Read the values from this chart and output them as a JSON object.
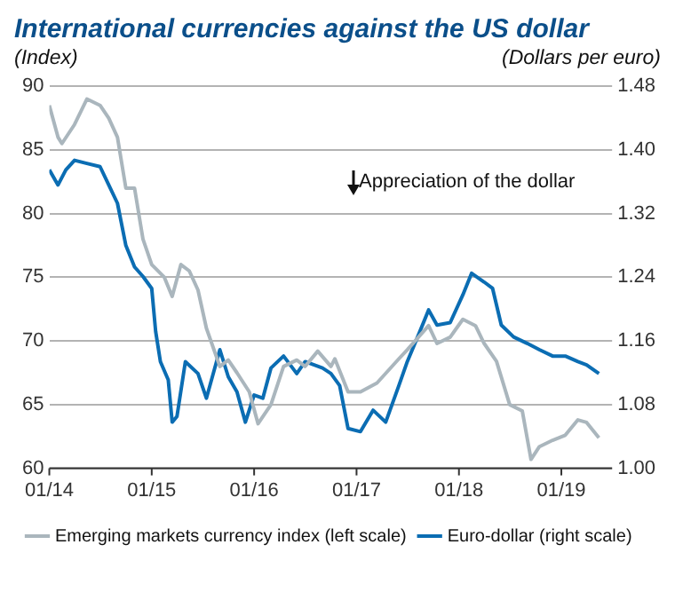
{
  "chart_data": {
    "type": "line",
    "title": "International currencies against the US dollar",
    "ylabel": "(Index)",
    "y2label": "(Dollars per euro)",
    "annotations": [
      "Appreciation of the dollar"
    ],
    "xlim": [
      "2014-01-01",
      "2019-07-01"
    ],
    "xticks": [
      {
        "value": "2014-01-01",
        "label": "01/14"
      },
      {
        "value": "2015-01-01",
        "label": "01/15"
      },
      {
        "value": "2016-01-01",
        "label": "01/16"
      },
      {
        "value": "2017-01-01",
        "label": "01/17"
      },
      {
        "value": "2018-01-01",
        "label": "01/18"
      },
      {
        "value": "2019-01-01",
        "label": "01/19"
      }
    ],
    "ylim": [
      60,
      90
    ],
    "yticks": [
      60,
      65,
      70,
      75,
      80,
      85,
      90
    ],
    "y2lim": [
      1.0,
      1.48
    ],
    "y2ticks": [
      {
        "value": 1.0,
        "label": "1.00"
      },
      {
        "value": 1.08,
        "label": "1.08"
      },
      {
        "value": 1.16,
        "label": "1.16"
      },
      {
        "value": 1.24,
        "label": "1.24"
      },
      {
        "value": 1.32,
        "label": "1.32"
      },
      {
        "value": 1.4,
        "label": "1.40"
      },
      {
        "value": 1.48,
        "label": "1.48"
      }
    ],
    "grid": "y",
    "legend": "bottom",
    "marker": "none",
    "line_style": "solid",
    "series": [
      {
        "name": "Emerging markets currency index (left scale)",
        "color": "#aab6bd",
        "x": [
          "2014-01-01",
          "2014-02-01",
          "2014-02-15",
          "2014-04-01",
          "2014-05-15",
          "2014-07-01",
          "2014-08-01",
          "2014-09-01",
          "2014-10-01",
          "2014-11-01",
          "2014-12-01",
          "2015-01-01",
          "2015-02-15",
          "2015-03-15",
          "2015-04-15",
          "2015-05-15",
          "2015-06-15",
          "2015-07-15",
          "2015-09-01",
          "2015-10-01",
          "2015-11-01",
          "2015-12-15",
          "2016-01-15",
          "2016-03-01",
          "2016-04-15",
          "2016-06-01",
          "2016-07-01",
          "2016-08-15",
          "2016-10-01",
          "2016-10-15",
          "2016-12-01",
          "2017-01-15",
          "2017-03-15",
          "2017-06-01",
          "2017-07-01",
          "2017-09-15",
          "2017-10-15",
          "2017-12-01",
          "2018-01-15",
          "2018-03-01",
          "2018-04-01",
          "2018-05-15",
          "2018-07-01",
          "2018-08-15",
          "2018-09-15",
          "2018-10-15",
          "2018-12-01",
          "2019-01-15",
          "2019-03-01",
          "2019-04-01",
          "2019-05-15"
        ],
        "values": [
          88.5,
          86,
          85.5,
          87,
          89,
          88.5,
          87.5,
          86,
          82,
          82,
          78,
          76,
          75,
          73.5,
          76,
          75.5,
          74,
          71,
          68,
          68.5,
          67.5,
          66,
          63.5,
          65,
          68,
          68.5,
          68,
          69.2,
          68,
          68.6,
          66,
          66,
          66.7,
          68.6,
          69.3,
          71.2,
          69.8,
          70.3,
          71.7,
          71.2,
          69.8,
          68.4,
          65,
          64.5,
          60.7,
          61.7,
          62.2,
          62.6,
          63.8,
          63.6,
          62.4
        ]
      },
      {
        "name": "Euro-dollar (right scale)",
        "color": "#0b6db3",
        "axis": "y2",
        "x": [
          "2014-01-01",
          "2014-02-01",
          "2014-03-01",
          "2014-04-01",
          "2014-05-15",
          "2014-07-01",
          "2014-08-01",
          "2014-09-01",
          "2014-10-01",
          "2014-11-01",
          "2014-12-01",
          "2015-01-01",
          "2015-01-15",
          "2015-02-01",
          "2015-03-01",
          "2015-03-15",
          "2015-04-01",
          "2015-05-01",
          "2015-06-15",
          "2015-07-15",
          "2015-09-01",
          "2015-10-01",
          "2015-11-01",
          "2015-12-01",
          "2016-01-01",
          "2016-02-01",
          "2016-03-01",
          "2016-04-15",
          "2016-06-01",
          "2016-07-01",
          "2016-09-01",
          "2016-10-01",
          "2016-11-01",
          "2016-12-01",
          "2017-01-15",
          "2017-03-01",
          "2017-04-15",
          "2017-06-01",
          "2017-07-01",
          "2017-08-15",
          "2017-09-15",
          "2017-10-15",
          "2017-12-01",
          "2018-01-15",
          "2018-02-15",
          "2018-04-01",
          "2018-05-01",
          "2018-06-01",
          "2018-07-15",
          "2018-09-01",
          "2018-10-15",
          "2018-12-01",
          "2019-01-15",
          "2019-03-01",
          "2019-04-01",
          "2019-05-15"
        ],
        "values": [
          1.375,
          1.356,
          1.375,
          1.387,
          1.383,
          1.379,
          1.356,
          1.333,
          1.28,
          1.253,
          1.241,
          1.226,
          1.172,
          1.134,
          1.111,
          1.058,
          1.065,
          1.134,
          1.119,
          1.088,
          1.149,
          1.115,
          1.096,
          1.058,
          1.092,
          1.088,
          1.126,
          1.141,
          1.119,
          1.134,
          1.126,
          1.119,
          1.104,
          1.05,
          1.046,
          1.073,
          1.058,
          1.104,
          1.134,
          1.172,
          1.199,
          1.18,
          1.183,
          1.218,
          1.245,
          1.234,
          1.226,
          1.18,
          1.165,
          1.157,
          1.149,
          1.141,
          1.141,
          1.134,
          1.13,
          1.119
        ]
      }
    ]
  }
}
